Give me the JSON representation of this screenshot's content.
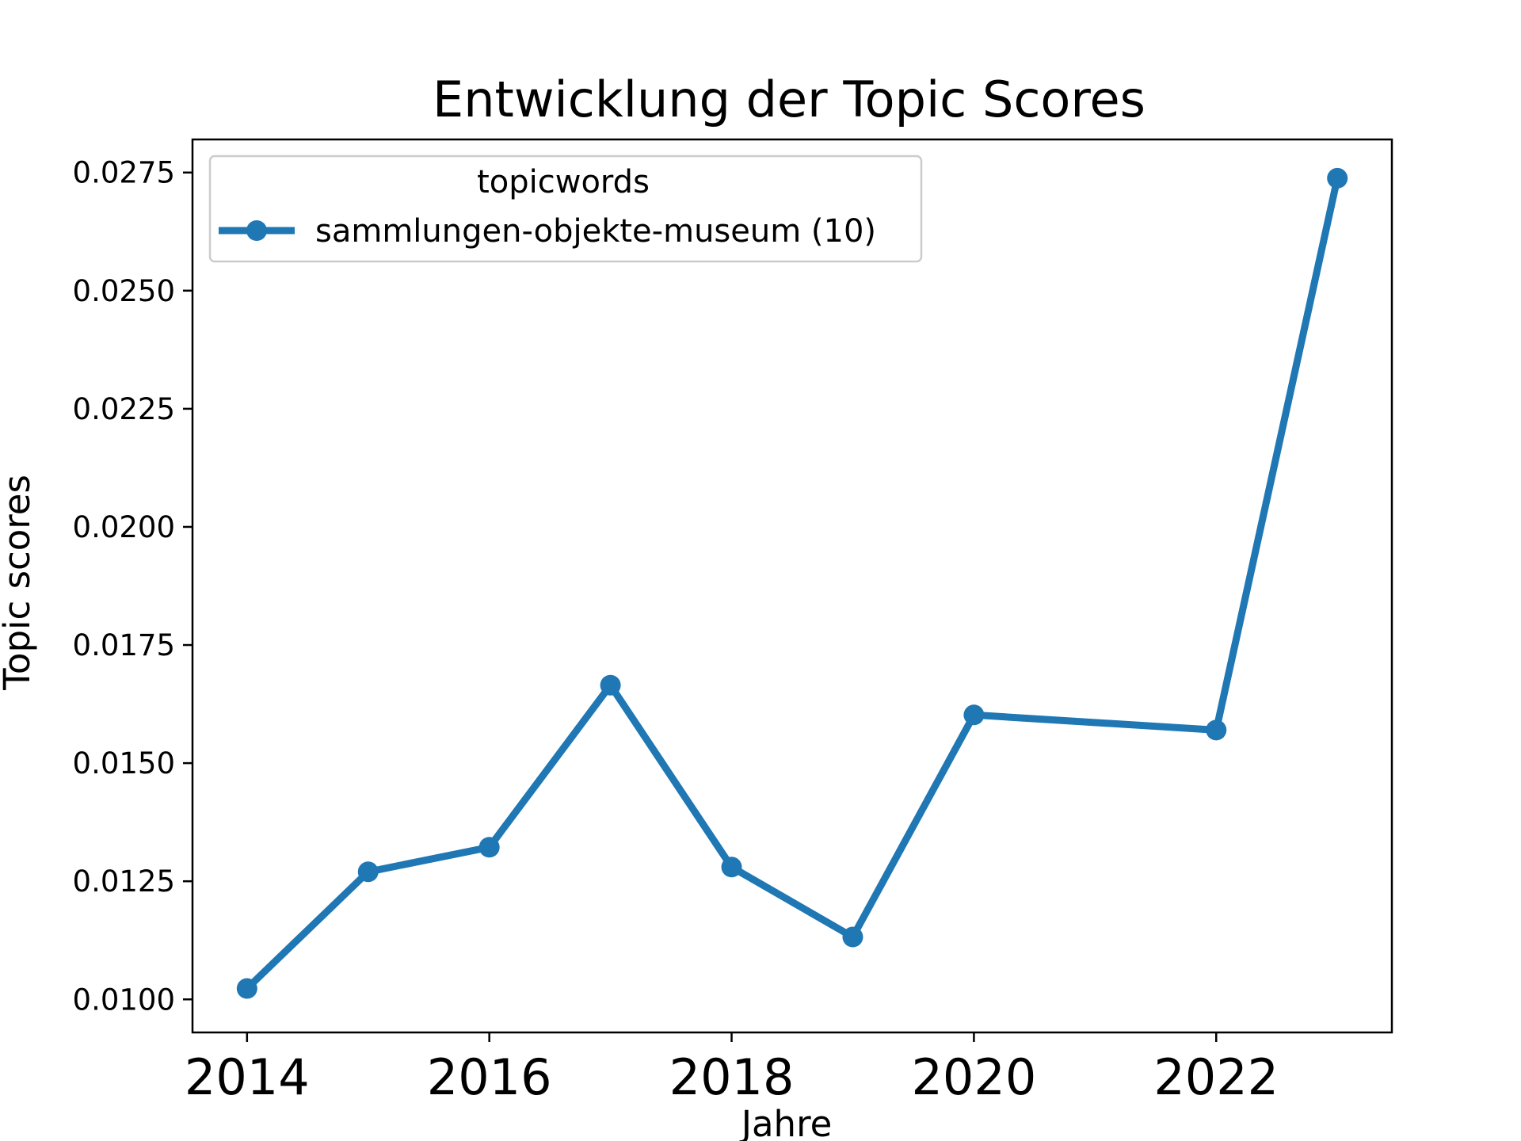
{
  "chart_data": {
    "type": "line",
    "title": "Entwicklung der Topic Scores",
    "xlabel": "Jahre",
    "ylabel": "Topic scores",
    "xlim": [
      2013.55,
      2023.45
    ],
    "ylim": [
      0.0093,
      0.0282
    ],
    "xticks": [
      2014,
      2016,
      2018,
      2020,
      2022
    ],
    "yticks": [
      0.01,
      0.0125,
      0.015,
      0.0175,
      0.02,
      0.0225,
      0.025,
      0.0275
    ],
    "ytick_labels": [
      "0.0100",
      "0.0125",
      "0.0150",
      "0.0175",
      "0.0200",
      "0.0225",
      "0.0250",
      "0.0275"
    ],
    "legend": {
      "title": "topicwords",
      "placement": "upper-left"
    },
    "series": [
      {
        "name": "sammlungen-objekte-museum (10)",
        "color": "#1f77b4",
        "x": [
          2014,
          2015,
          2016,
          2017,
          2018,
          2019,
          2020,
          2022,
          2023
        ],
        "values": [
          0.01023,
          0.0127,
          0.01322,
          0.01665,
          0.0128,
          0.01132,
          0.01602,
          0.0157,
          0.02738
        ]
      }
    ]
  }
}
